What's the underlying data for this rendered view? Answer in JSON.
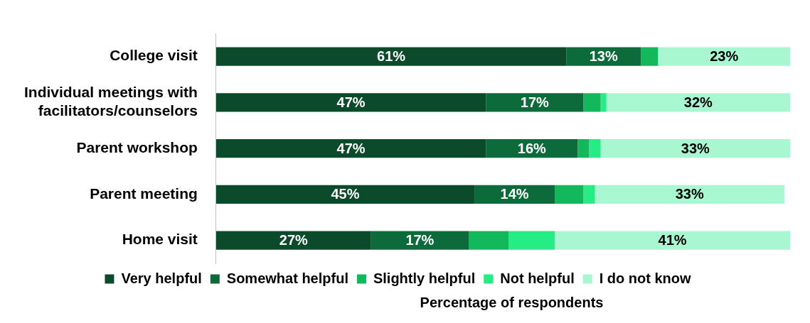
{
  "chart_data": {
    "type": "bar",
    "orientation": "horizontal",
    "stacked": true,
    "xlabel": "Percentage of respondents",
    "categories": [
      "College visit",
      "Individual meetings with facilitators/counselors",
      "Parent workshop",
      "Parent meeting",
      "Home visit"
    ],
    "series": [
      {
        "name": "Very helpful",
        "color": "#0b4a2b",
        "values": [
          61,
          47,
          47,
          45,
          27
        ],
        "value_labels": [
          "61%",
          "47%",
          "47%",
          "45%",
          "27%"
        ]
      },
      {
        "name": "Somewhat helpful",
        "color": "#0d6b3b",
        "values": [
          13,
          17,
          16,
          14,
          17
        ],
        "value_labels": [
          "13%",
          "17%",
          "16%",
          "14%",
          "17%"
        ]
      },
      {
        "name": "Slightly helpful",
        "color": "#14b85c",
        "values": [
          3,
          3,
          2,
          5,
          7
        ],
        "value_labels": [
          null,
          null,
          null,
          null,
          null
        ]
      },
      {
        "name": "Not helpful",
        "color": "#25ec85",
        "values": [
          0,
          1,
          2,
          2,
          8
        ],
        "value_labels": [
          null,
          null,
          null,
          null,
          null
        ]
      },
      {
        "name": "I do not know",
        "color": "#a9f7d0",
        "values": [
          23,
          32,
          33,
          33,
          41
        ],
        "value_labels": [
          "23%",
          "32%",
          "33%",
          "33%",
          "41%"
        ]
      }
    ],
    "xlim": [
      0,
      100
    ],
    "tick_labels": "y",
    "grid": false,
    "legend": "bottom"
  }
}
